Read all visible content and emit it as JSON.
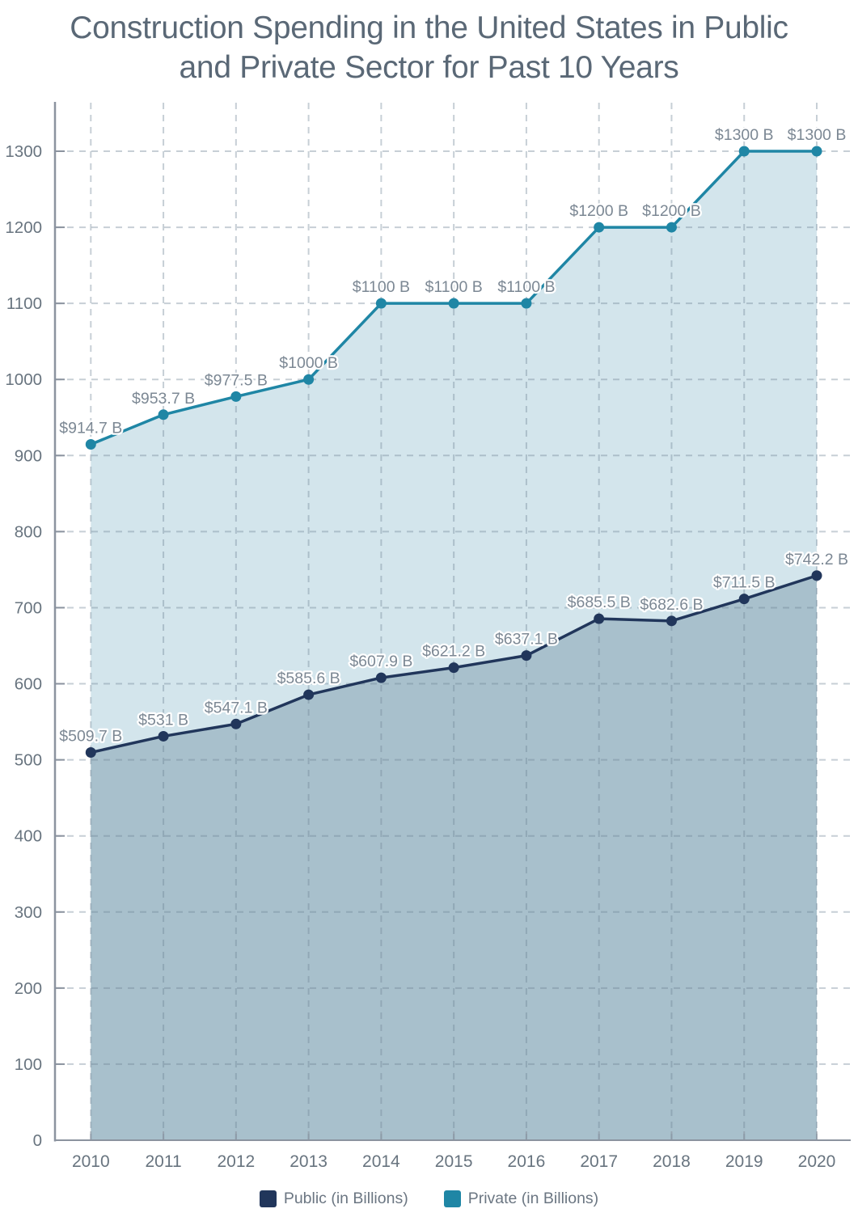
{
  "title": {
    "text": "Construction Spending in the United States in Public and Private Sector for Past 10 Years",
    "line1": "Construction Spending in the United States in Public",
    "line2": "and Private Sector for Past 10 Years"
  },
  "chart_data": {
    "type": "area",
    "title": "Construction Spending in the United States in Public and Private Sector for Past 10 Years",
    "categories": [
      "2010",
      "2011",
      "2012",
      "2013",
      "2014",
      "2015",
      "2016",
      "2017",
      "2018",
      "2019",
      "2020"
    ],
    "series": [
      {
        "name": "Public (in Billions)",
        "color": "#21365b",
        "fill": "#a8c0cc",
        "values": [
          509.7,
          531,
          547.1,
          585.6,
          607.9,
          621.2,
          637.1,
          685.5,
          682.6,
          711.5,
          742.2
        ],
        "point_labels": [
          "$509.7 B",
          "$531 B",
          "$547.1 B",
          "$585.6 B",
          "$607.9 B",
          "$621.2 B",
          "$637.1 B",
          "$685.5 B",
          "$682.6 B",
          "$711.5 B",
          "$742.2 B"
        ]
      },
      {
        "name": "Private (in Billions)",
        "color": "#1f86a5",
        "fill": "#d3e5ec",
        "values": [
          914.7,
          953.7,
          977.5,
          1000,
          1100,
          1100,
          1100,
          1200,
          1200,
          1300,
          1300
        ],
        "point_labels": [
          "$914.7 B",
          "$953.7 B",
          "$977.5 B",
          "$1000 B",
          "$1100 B",
          "$1100 B",
          "$1100 B",
          "$1200 B",
          "$1200 B",
          "$1300 B",
          "$1300 B"
        ]
      }
    ],
    "xlabel": "",
    "ylabel": "",
    "ylim": [
      0,
      1364
    ],
    "yticks": [
      0,
      100,
      200,
      300,
      400,
      500,
      600,
      700,
      800,
      900,
      1000,
      1100,
      1200,
      1300
    ],
    "grid": true,
    "grid_style": "dashed",
    "legend_position": "bottom"
  },
  "legend": {
    "items": [
      {
        "label": "Public (in Billions)",
        "color": "#21365b"
      },
      {
        "label": "Private (in Billions)",
        "color": "#1f86a5"
      }
    ]
  },
  "colors": {
    "background": "#ffffff",
    "title": "#5a6876",
    "axis": "#8b939f",
    "grid": "#6c8294",
    "tick_label": "#68747f",
    "data_label": "#7c8894"
  }
}
